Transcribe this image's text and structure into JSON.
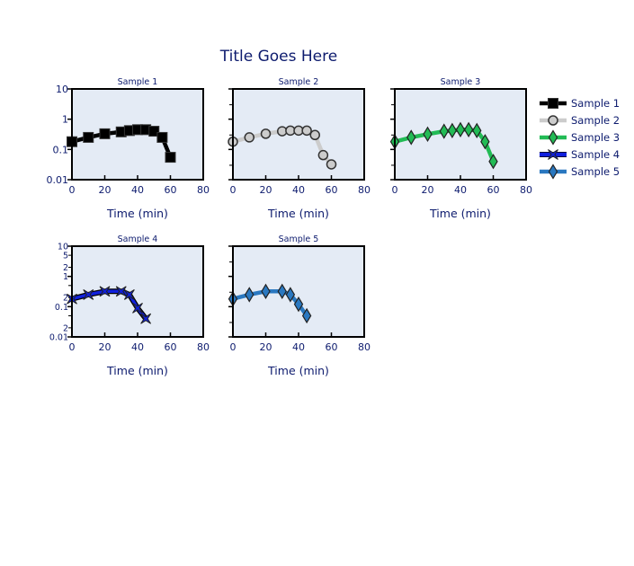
{
  "chart_data": {
    "type": "line",
    "title": "Title Goes Here",
    "x_axis": {
      "label": "Time (min)",
      "range": [
        0,
        80
      ],
      "ticks": [
        0,
        20,
        40,
        60,
        80
      ]
    },
    "y_axis": {
      "scale": "log",
      "range": [
        0.01,
        10
      ]
    },
    "panels_y_ticks": {
      "sparse": [
        "0.01",
        "0.1",
        "1",
        "10"
      ],
      "dense": [
        "0.01",
        "2",
        "0.1",
        "2",
        "1",
        "2",
        "5",
        "10"
      ]
    },
    "legend": {
      "position": "right"
    },
    "series": [
      {
        "name": "Sample 1",
        "panel_title": "Sample 1",
        "color": "#000000",
        "marker": "square",
        "x": [
          0,
          10,
          20,
          30,
          35,
          40,
          45,
          50,
          55,
          60
        ],
        "y": [
          0.18,
          0.25,
          0.33,
          0.38,
          0.42,
          0.45,
          0.45,
          0.4,
          0.25,
          0.055
        ]
      },
      {
        "name": "Sample 2",
        "panel_title": "Sample 2",
        "color": "#cccccc",
        "marker": "circle",
        "x": [
          0,
          10,
          20,
          30,
          35,
          40,
          45,
          50,
          55,
          60
        ],
        "y": [
          0.18,
          0.25,
          0.33,
          0.4,
          0.42,
          0.42,
          0.42,
          0.3,
          0.065,
          0.032
        ]
      },
      {
        "name": "Sample 3",
        "panel_title": "Sample 3",
        "color": "#22bb55",
        "marker": "diamond",
        "x": [
          0,
          10,
          20,
          30,
          35,
          40,
          45,
          50,
          55,
          60
        ],
        "y": [
          0.18,
          0.25,
          0.32,
          0.4,
          0.42,
          0.45,
          0.45,
          0.42,
          0.18,
          0.04
        ]
      },
      {
        "name": "Sample 4",
        "panel_title": "Sample 4",
        "color": "#1020dd",
        "marker": "bowtie",
        "x": [
          0,
          10,
          20,
          30,
          35,
          40,
          45
        ],
        "y": [
          0.18,
          0.25,
          0.32,
          0.32,
          0.25,
          0.09,
          0.04
        ]
      },
      {
        "name": "Sample 5",
        "panel_title": "Sample 5",
        "color": "#2a78c0",
        "marker": "diamond",
        "x": [
          0,
          10,
          20,
          30,
          35,
          40,
          45
        ],
        "y": [
          0.18,
          0.25,
          0.32,
          0.32,
          0.25,
          0.12,
          0.05
        ]
      }
    ]
  }
}
